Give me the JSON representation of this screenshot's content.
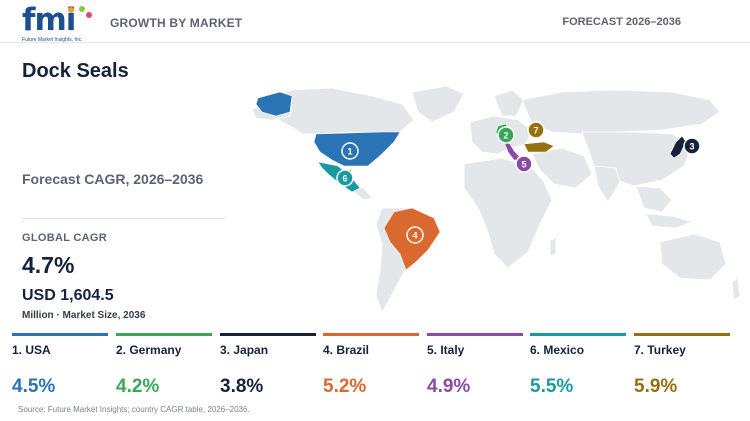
{
  "header": {
    "logo_text": "fmi",
    "logo_tagline": "Future Market Insights, Inc.",
    "title": "GROWTH BY MARKET",
    "forecast": "FORECAST 2026–2036"
  },
  "page_title": "Dock Seals",
  "cagr_heading": "Forecast CAGR, 2026–2036",
  "global": {
    "label": "GLOBAL CAGR",
    "value": "4.7%",
    "market_size": "USD 1,604.5",
    "market_size_caption": "Million · Market Size, 2036"
  },
  "countries": [
    {
      "rank": "1",
      "label": "1. USA",
      "cagr": "4.5%",
      "color": "#2a74b6"
    },
    {
      "rank": "2",
      "label": "2. Germany",
      "cagr": "4.2%",
      "color": "#3aa757"
    },
    {
      "rank": "3",
      "label": "3. Japan",
      "cagr": "3.8%",
      "color": "#14233b"
    },
    {
      "rank": "4",
      "label": "4. Brazil",
      "cagr": "5.2%",
      "color": "#d9692f"
    },
    {
      "rank": "5",
      "label": "5. Italy",
      "cagr": "4.9%",
      "color": "#8a4aa6"
    },
    {
      "rank": "6",
      "label": "6. Mexico",
      "cagr": "5.5%",
      "color": "#199aa1"
    },
    {
      "rank": "7",
      "label": "7. Turkey",
      "cagr": "5.9%",
      "color": "#94700f"
    }
  ],
  "map_colors": {
    "land": "#e4e7ea",
    "border": "#ffffff"
  },
  "source": "Source: Future Market Insights; country CAGR table, 2026–2036."
}
